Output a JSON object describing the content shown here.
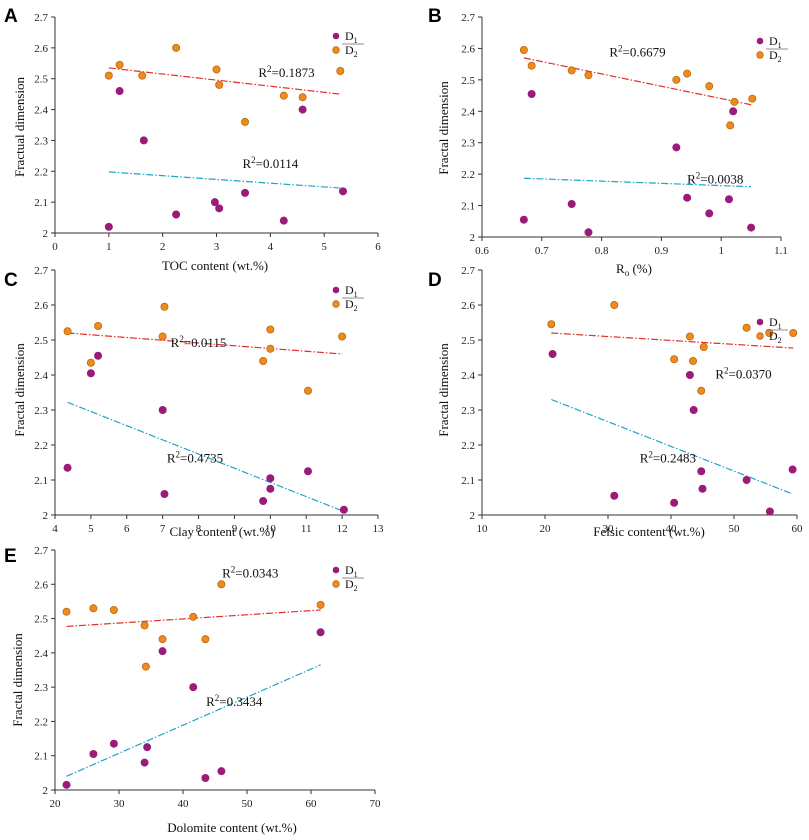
{
  "colors": {
    "d1": "#9b1b7a",
    "d2": "#f08a1c",
    "d2_stroke": "#b86a10",
    "fit_d2": "#e0302a",
    "fit_d1": "#1ea5c8",
    "axis": "#333333"
  },
  "chart_data": [
    {
      "panel": "A",
      "type": "scatter",
      "xlabel": "TOC content (wt.%)",
      "ylabel": "Fractual dimension",
      "xlim": [
        0,
        6
      ],
      "ylim": [
        2,
        2.7
      ],
      "xticks": [
        "0",
        "1",
        "2",
        "3",
        "4",
        "5",
        "6"
      ],
      "yticks": [
        "2",
        "2.1",
        "2.2",
        "2.3",
        "2.4",
        "2.5",
        "2.6",
        "2.7"
      ],
      "legend": {
        "d1": "D",
        "d1_sub": "1",
        "d2": "D",
        "d2_sub": "2"
      },
      "series": [
        {
          "name": "D1",
          "points": [
            [
              1.0,
              2.02
            ],
            [
              1.2,
              2.46
            ],
            [
              1.65,
              2.3
            ],
            [
              2.25,
              2.06
            ],
            [
              2.97,
              2.1
            ],
            [
              3.05,
              2.08
            ],
            [
              3.53,
              2.13
            ],
            [
              4.25,
              2.04
            ],
            [
              4.6,
              2.4
            ],
            [
              5.35,
              2.135
            ]
          ]
        },
        {
          "name": "D2",
          "points": [
            [
              1.0,
              2.51
            ],
            [
              1.2,
              2.545
            ],
            [
              1.62,
              2.51
            ],
            [
              2.25,
              2.6
            ],
            [
              3.0,
              2.53
            ],
            [
              3.05,
              2.48
            ],
            [
              3.53,
              2.36
            ],
            [
              4.25,
              2.445
            ],
            [
              4.6,
              2.44
            ],
            [
              5.3,
              2.525
            ]
          ]
        }
      ],
      "fits": [
        {
          "series": "D2",
          "x": [
            1.0,
            5.3
          ],
          "y": [
            2.535,
            2.45
          ],
          "r2_label": "R",
          "r2_sup": "2",
          "r2_value": "=0.1873",
          "label_at": [
            4.3,
            2.505
          ]
        },
        {
          "series": "D1",
          "x": [
            1.0,
            5.35
          ],
          "y": [
            2.198,
            2.145
          ],
          "r2_label": "R",
          "r2_sup": "2",
          "r2_value": "=0.0114",
          "label_at": [
            4.0,
            2.21
          ]
        }
      ]
    },
    {
      "panel": "B",
      "type": "scatter",
      "xlabel": "R",
      "xlabel_sub": "o",
      "xlabel_suffix": " (%)",
      "ylabel": "Fractal dimension",
      "xlim": [
        0.6,
        1.1
      ],
      "ylim": [
        2,
        2.7
      ],
      "xticks": [
        "0.6",
        "0.7",
        "0.8",
        "0.9",
        "1",
        "1.1"
      ],
      "yticks": [
        "2",
        "2.1",
        "2.2",
        "2.3",
        "2.4",
        "2.5",
        "2.6",
        "2.7"
      ],
      "legend": {
        "d1": "D",
        "d1_sub": "1",
        "d2": "D",
        "d2_sub": "2"
      },
      "series": [
        {
          "name": "D1",
          "points": [
            [
              0.67,
              2.055
            ],
            [
              0.683,
              2.455
            ],
            [
              0.75,
              2.105
            ],
            [
              0.778,
              2.015
            ],
            [
              0.925,
              2.285
            ],
            [
              0.943,
              2.125
            ],
            [
              0.98,
              2.075
            ],
            [
              1.013,
              2.12
            ],
            [
              1.02,
              2.4
            ],
            [
              1.05,
              2.03
            ]
          ]
        },
        {
          "name": "D2",
          "points": [
            [
              0.67,
              2.595
            ],
            [
              0.683,
              2.545
            ],
            [
              0.75,
              2.53
            ],
            [
              0.778,
              2.515
            ],
            [
              0.925,
              2.5
            ],
            [
              0.943,
              2.52
            ],
            [
              0.98,
              2.48
            ],
            [
              1.015,
              2.355
            ],
            [
              1.022,
              2.43
            ],
            [
              1.052,
              2.44
            ]
          ]
        }
      ],
      "fits": [
        {
          "series": "D2",
          "x": [
            0.67,
            1.052
          ],
          "y": [
            2.57,
            2.42
          ],
          "r2_label": "R",
          "r2_sup": "2",
          "r2_value": "=0.6679",
          "label_at": [
            0.86,
            2.575
          ]
        },
        {
          "series": "D1",
          "x": [
            0.67,
            1.05
          ],
          "y": [
            2.187,
            2.16
          ],
          "r2_label": "R",
          "r2_sup": "2",
          "r2_value": "=0.0038",
          "label_at": [
            0.99,
            2.17
          ]
        }
      ]
    },
    {
      "panel": "C",
      "type": "scatter",
      "xlabel": "Clay content (wt.%)",
      "ylabel": "Fractal dimension",
      "xlim": [
        4,
        13
      ],
      "ylim": [
        2,
        2.7
      ],
      "xticks": [
        "4",
        "5",
        "6",
        "7",
        "8",
        "9",
        "10",
        "11",
        "12",
        "13"
      ],
      "yticks": [
        "2",
        "2.1",
        "2.2",
        "2.3",
        "2.4",
        "2.5",
        "2.6",
        "2.7"
      ],
      "legend": {
        "d1": "D",
        "d1_sub": "1",
        "d2": "D",
        "d2_sub": "2"
      },
      "series": [
        {
          "name": "D1",
          "points": [
            [
              4.35,
              2.135
            ],
            [
              5.0,
              2.405
            ],
            [
              5.2,
              2.455
            ],
            [
              7.0,
              2.3
            ],
            [
              7.05,
              2.06
            ],
            [
              9.8,
              2.04
            ],
            [
              10.0,
              2.075
            ],
            [
              10.0,
              2.105
            ],
            [
              11.05,
              2.125
            ],
            [
              12.05,
              2.015
            ]
          ]
        },
        {
          "name": "D2",
          "points": [
            [
              4.35,
              2.525
            ],
            [
              5.0,
              2.435
            ],
            [
              5.2,
              2.54
            ],
            [
              7.0,
              2.51
            ],
            [
              7.05,
              2.595
            ],
            [
              9.8,
              2.44
            ],
            [
              10.0,
              2.53
            ],
            [
              10.0,
              2.475
            ],
            [
              11.05,
              2.355
            ],
            [
              12.0,
              2.51
            ]
          ]
        }
      ],
      "fits": [
        {
          "series": "D2",
          "x": [
            4.35,
            12.0
          ],
          "y": [
            2.52,
            2.46
          ],
          "r2_label": "R",
          "r2_sup": "2",
          "r2_value": "=0.0115",
          "label_at": [
            8.0,
            2.48
          ]
        },
        {
          "series": "D1",
          "x": [
            4.35,
            12.05
          ],
          "y": [
            2.322,
            2.01
          ],
          "r2_label": "R",
          "r2_sup": "2",
          "r2_value": "=0.4735",
          "label_at": [
            7.9,
            2.15
          ]
        }
      ]
    },
    {
      "panel": "D",
      "type": "scatter",
      "xlabel": "Felsic content (wt.%)",
      "ylabel": "Fractal dimension",
      "xlim": [
        10,
        60
      ],
      "ylim": [
        2,
        2.7
      ],
      "xticks": [
        "10",
        "20",
        "30",
        "40",
        "50",
        "60"
      ],
      "yticks": [
        "2",
        "2.1",
        "2.2",
        "2.3",
        "2.4",
        "2.5",
        "2.6",
        "2.7"
      ],
      "legend": {
        "d1": "D",
        "d1_sub": "1",
        "d2": "D",
        "d2_sub": "2"
      },
      "series": [
        {
          "name": "D1",
          "points": [
            [
              21.2,
              2.46
            ],
            [
              31.0,
              2.055
            ],
            [
              40.5,
              2.035
            ],
            [
              43.0,
              2.4
            ],
            [
              43.6,
              2.3
            ],
            [
              44.8,
              2.125
            ],
            [
              45.0,
              2.075
            ],
            [
              52.0,
              2.1
            ],
            [
              55.7,
              2.01
            ],
            [
              59.3,
              2.13
            ]
          ]
        },
        {
          "name": "D2",
          "points": [
            [
              21.0,
              2.545
            ],
            [
              31.0,
              2.6
            ],
            [
              40.5,
              2.445
            ],
            [
              43.0,
              2.51
            ],
            [
              43.5,
              2.44
            ],
            [
              44.8,
              2.355
            ],
            [
              45.2,
              2.48
            ],
            [
              52.0,
              2.535
            ],
            [
              55.6,
              2.52
            ],
            [
              59.4,
              2.52
            ]
          ]
        }
      ],
      "fits": [
        {
          "series": "D2",
          "x": [
            21.0,
            59.4
          ],
          "y": [
            2.52,
            2.477
          ],
          "r2_label": "R",
          "r2_sup": "2",
          "r2_value": "=0.0370",
          "label_at": [
            51.5,
            2.39
          ]
        },
        {
          "series": "D1",
          "x": [
            21.0,
            59.3
          ],
          "y": [
            2.33,
            2.06
          ],
          "r2_label": "R",
          "r2_sup": "2",
          "r2_value": "=0.2483",
          "label_at": [
            39.5,
            2.15
          ]
        }
      ]
    },
    {
      "panel": "E",
      "type": "scatter",
      "xlabel": "Dolomite content (wt.%)",
      "ylabel": "Fractal dimension",
      "xlim": [
        20,
        70
      ],
      "ylim": [
        2,
        2.7
      ],
      "xticks": [
        "20",
        "30",
        "40",
        "50",
        "60",
        "70"
      ],
      "yticks": [
        "2",
        "2.1",
        "2.2",
        "2.3",
        "2.4",
        "2.5",
        "2.6",
        "2.7"
      ],
      "legend": {
        "d1": "D",
        "d1_sub": "1",
        "d2": "D",
        "d2_sub": "2"
      },
      "series": [
        {
          "name": "D1",
          "points": [
            [
              21.8,
              2.015
            ],
            [
              26.0,
              2.105
            ],
            [
              29.2,
              2.135
            ],
            [
              34.0,
              2.08
            ],
            [
              34.4,
              2.125
            ],
            [
              36.8,
              2.405
            ],
            [
              41.6,
              2.3
            ],
            [
              43.5,
              2.035
            ],
            [
              46.0,
              2.055
            ],
            [
              61.5,
              2.46
            ]
          ]
        },
        {
          "name": "D2",
          "points": [
            [
              21.8,
              2.52
            ],
            [
              26.0,
              2.53
            ],
            [
              29.2,
              2.525
            ],
            [
              34.0,
              2.48
            ],
            [
              34.2,
              2.36
            ],
            [
              36.8,
              2.44
            ],
            [
              41.6,
              2.505
            ],
            [
              43.5,
              2.44
            ],
            [
              46.0,
              2.6
            ],
            [
              61.5,
              2.54
            ]
          ]
        }
      ],
      "fits": [
        {
          "series": "D2",
          "x": [
            21.8,
            61.5
          ],
          "y": [
            2.477,
            2.525
          ],
          "r2_label": "R",
          "r2_sup": "2",
          "r2_value": "=0.0343",
          "label_at": [
            50.5,
            2.62
          ]
        },
        {
          "series": "D1",
          "x": [
            21.8,
            61.5
          ],
          "y": [
            2.04,
            2.365
          ],
          "r2_label": "R",
          "r2_sup": "2",
          "r2_value": "=0.3434",
          "label_at": [
            48.0,
            2.245
          ]
        }
      ]
    }
  ]
}
